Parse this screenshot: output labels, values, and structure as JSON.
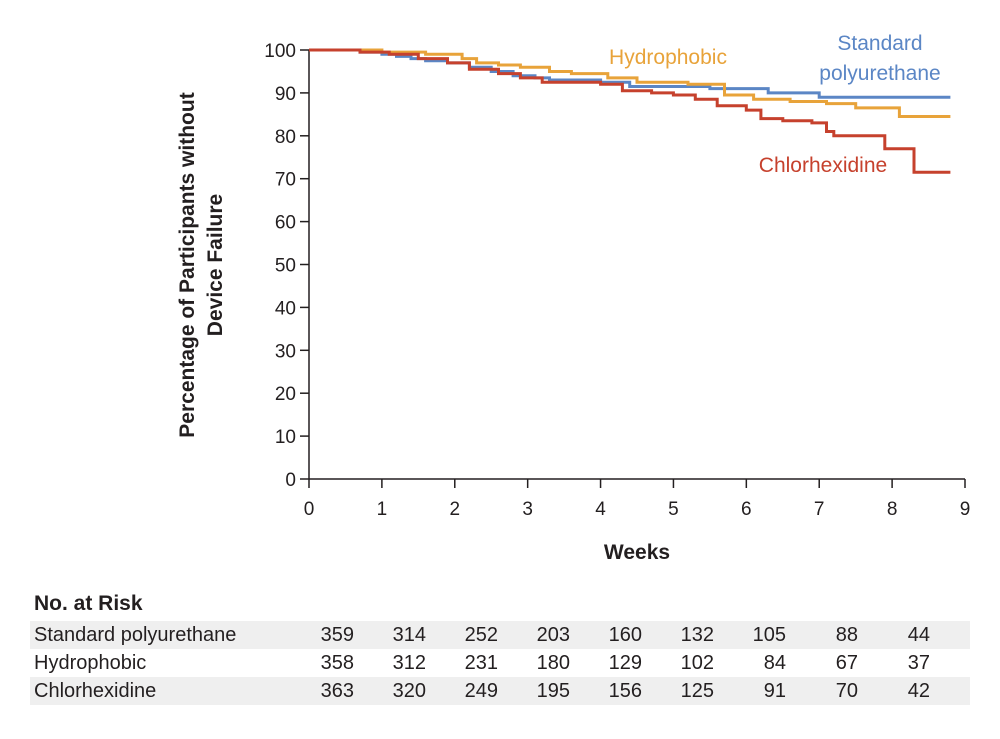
{
  "chart_data": {
    "type": "line",
    "subtype": "kaplan-meier step",
    "ylabel_line1": "Percentage of Participants without",
    "ylabel_line2": "Device Failure",
    "xlabel": "Weeks",
    "xlim": [
      0,
      9
    ],
    "ylim": [
      0,
      100
    ],
    "xticks": [
      "0",
      "1",
      "2",
      "3",
      "4",
      "5",
      "6",
      "7",
      "8",
      "9"
    ],
    "yticks": [
      "0",
      "10",
      "20",
      "30",
      "40",
      "50",
      "60",
      "70",
      "80",
      "90",
      "100"
    ],
    "series": [
      {
        "name": "Standard polyurethane",
        "label_line1": "Standard",
        "label_line2": "polyurethane",
        "color": "#5b86c5",
        "points": [
          [
            0,
            100
          ],
          [
            0.6,
            100
          ],
          [
            0.7,
            99.5
          ],
          [
            1.0,
            99
          ],
          [
            1.2,
            98.5
          ],
          [
            1.4,
            98
          ],
          [
            1.6,
            97.5
          ],
          [
            1.9,
            97
          ],
          [
            2.2,
            96
          ],
          [
            2.5,
            95
          ],
          [
            2.8,
            94
          ],
          [
            3.1,
            93.5
          ],
          [
            3.3,
            93
          ],
          [
            3.6,
            93
          ],
          [
            4.0,
            92.5
          ],
          [
            4.4,
            91.5
          ],
          [
            5.1,
            91.5
          ],
          [
            5.5,
            91
          ],
          [
            6.3,
            90
          ],
          [
            7.0,
            89
          ],
          [
            8.0,
            89
          ],
          [
            8.8,
            89
          ]
        ]
      },
      {
        "name": "Hydrophobic",
        "label_line1": "Hydrophobic",
        "color": "#e8a33a",
        "points": [
          [
            0,
            100
          ],
          [
            0.7,
            100
          ],
          [
            1.0,
            99.5
          ],
          [
            1.6,
            99
          ],
          [
            2.1,
            98
          ],
          [
            2.3,
            97
          ],
          [
            2.6,
            96.5
          ],
          [
            2.9,
            96
          ],
          [
            3.3,
            95
          ],
          [
            3.6,
            94.5
          ],
          [
            4.1,
            93.5
          ],
          [
            4.5,
            92.5
          ],
          [
            5.2,
            92
          ],
          [
            5.7,
            89.5
          ],
          [
            6.1,
            88.5
          ],
          [
            6.6,
            88
          ],
          [
            7.1,
            87.5
          ],
          [
            7.5,
            86.5
          ],
          [
            8.1,
            84.5
          ],
          [
            8.8,
            84.5
          ]
        ]
      },
      {
        "name": "Chlorhexidine",
        "label_line1": "Chlorhexidine",
        "color": "#c6412d",
        "points": [
          [
            0,
            100
          ],
          [
            0.5,
            100
          ],
          [
            0.7,
            99.5
          ],
          [
            1.1,
            99
          ],
          [
            1.5,
            98
          ],
          [
            1.9,
            97
          ],
          [
            2.2,
            95.5
          ],
          [
            2.6,
            94.5
          ],
          [
            2.9,
            93.5
          ],
          [
            3.2,
            92.5
          ],
          [
            3.5,
            92.5
          ],
          [
            4.0,
            92
          ],
          [
            4.3,
            90.5
          ],
          [
            4.7,
            90
          ],
          [
            5.0,
            89.5
          ],
          [
            5.3,
            88.5
          ],
          [
            5.6,
            87
          ],
          [
            6.0,
            86
          ],
          [
            6.2,
            84
          ],
          [
            6.5,
            83.5
          ],
          [
            6.9,
            83
          ],
          [
            7.1,
            81
          ],
          [
            7.2,
            80
          ],
          [
            7.5,
            80
          ],
          [
            7.9,
            77
          ],
          [
            8.3,
            71.5
          ],
          [
            8.8,
            71.5
          ]
        ]
      }
    ]
  },
  "risk_table": {
    "title": "No. at Risk",
    "rows": [
      {
        "label": "Standard polyurethane",
        "values": [
          "359",
          "314",
          "252",
          "203",
          "160",
          "132",
          "105",
          "88",
          "44"
        ]
      },
      {
        "label": "Hydrophobic",
        "values": [
          "358",
          "312",
          "231",
          "180",
          "129",
          "102",
          "84",
          "67",
          "37"
        ]
      },
      {
        "label": "Chlorhexidine",
        "values": [
          "363",
          "320",
          "249",
          "195",
          "156",
          "125",
          "91",
          "70",
          "42"
        ]
      }
    ]
  }
}
